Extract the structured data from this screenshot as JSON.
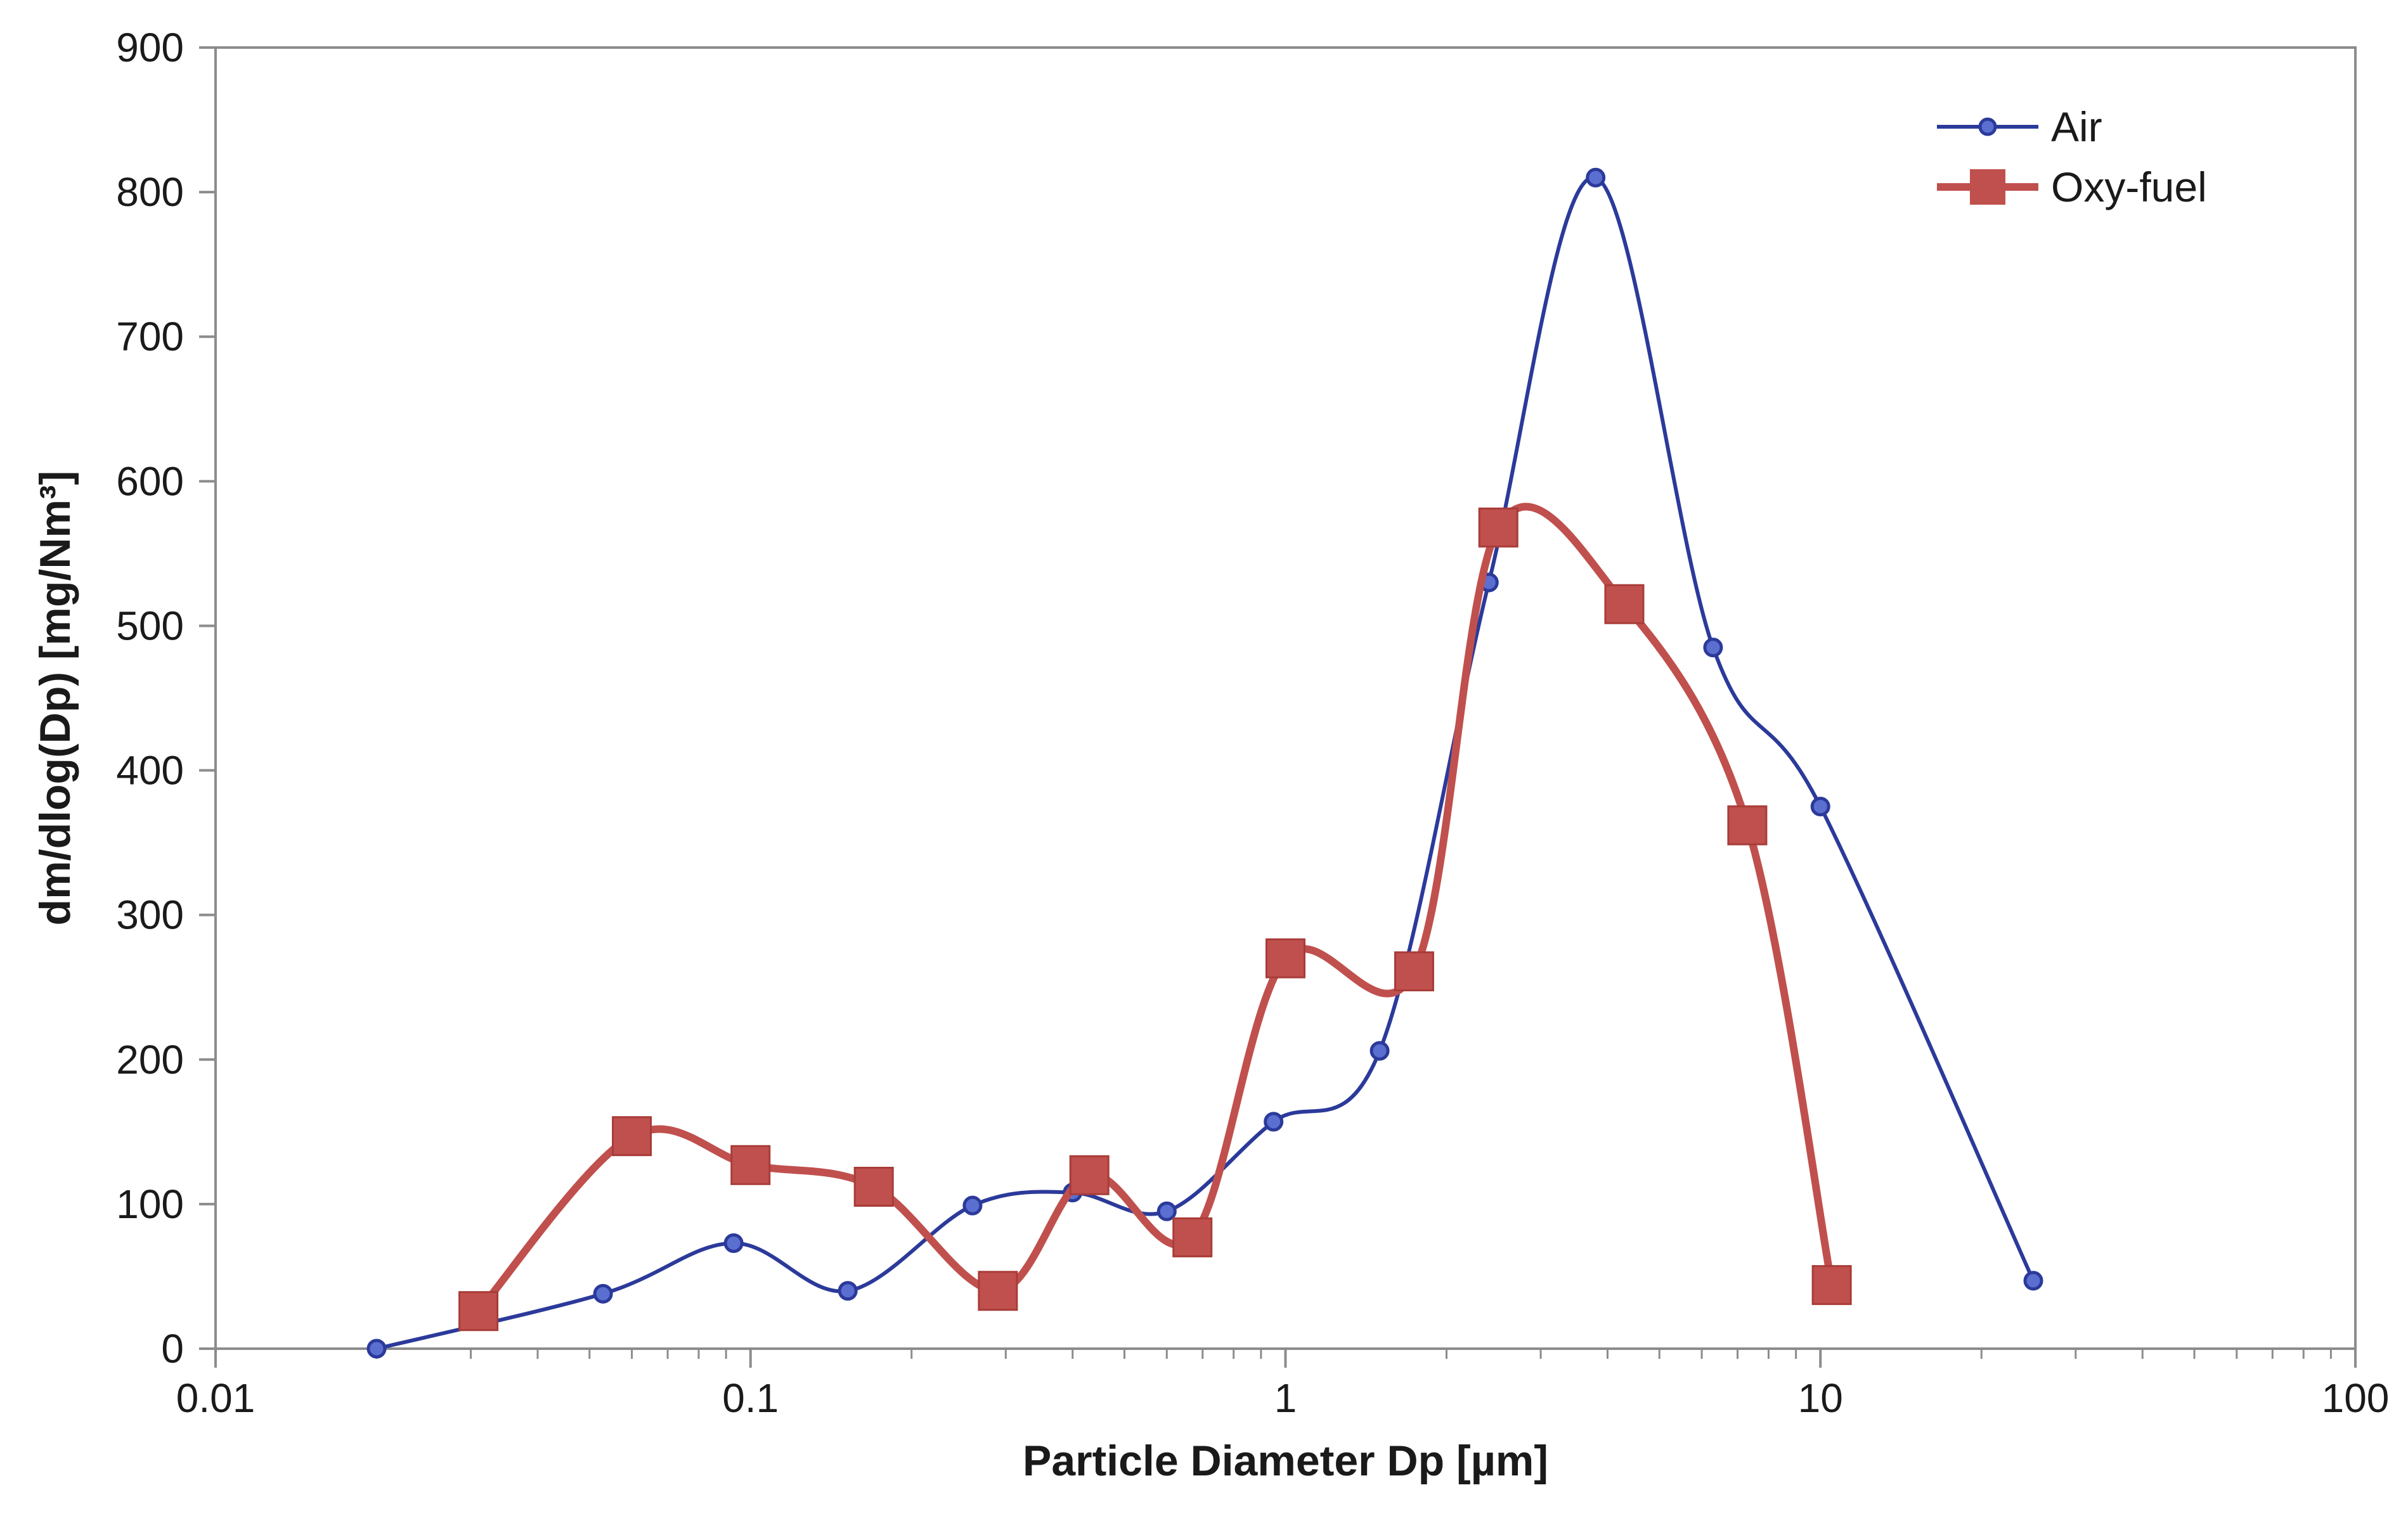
{
  "chart_data": {
    "type": "line",
    "title": "",
    "xlabel": "Particle Diameter Dp [µm]",
    "ylabel": "dm/dlog(Dp) [mg/Nm³]",
    "xscale": "log",
    "xlim": [
      0.01,
      100
    ],
    "ylim": [
      0,
      900
    ],
    "xticks": [
      "0.01",
      "0.1",
      "1",
      "10",
      "100"
    ],
    "yticks": [
      "0",
      "100",
      "200",
      "300",
      "400",
      "500",
      "600",
      "700",
      "800",
      "900"
    ],
    "grid": false,
    "legend_position": "top-right",
    "series": [
      {
        "name": "Air",
        "color": "#2b3a9a",
        "marker": "circle",
        "x": [
          0.02,
          0.053,
          0.093,
          0.152,
          0.26,
          0.4,
          0.6,
          0.95,
          1.5,
          2.4,
          3.8,
          6.3,
          10,
          25
        ],
        "y": [
          0,
          38,
          73,
          40,
          99,
          108,
          95,
          157,
          206,
          530,
          810,
          485,
          375,
          47
        ]
      },
      {
        "name": "Oxy-fuel",
        "color": "#c0504d",
        "marker": "square",
        "x": [
          0.031,
          0.06,
          0.1,
          0.17,
          0.29,
          0.43,
          0.67,
          1.0,
          1.74,
          2.5,
          4.3,
          7.3,
          10.5
        ],
        "y": [
          26,
          147,
          127,
          112,
          40,
          120,
          77,
          270,
          261,
          568,
          515,
          362,
          44
        ]
      }
    ]
  }
}
